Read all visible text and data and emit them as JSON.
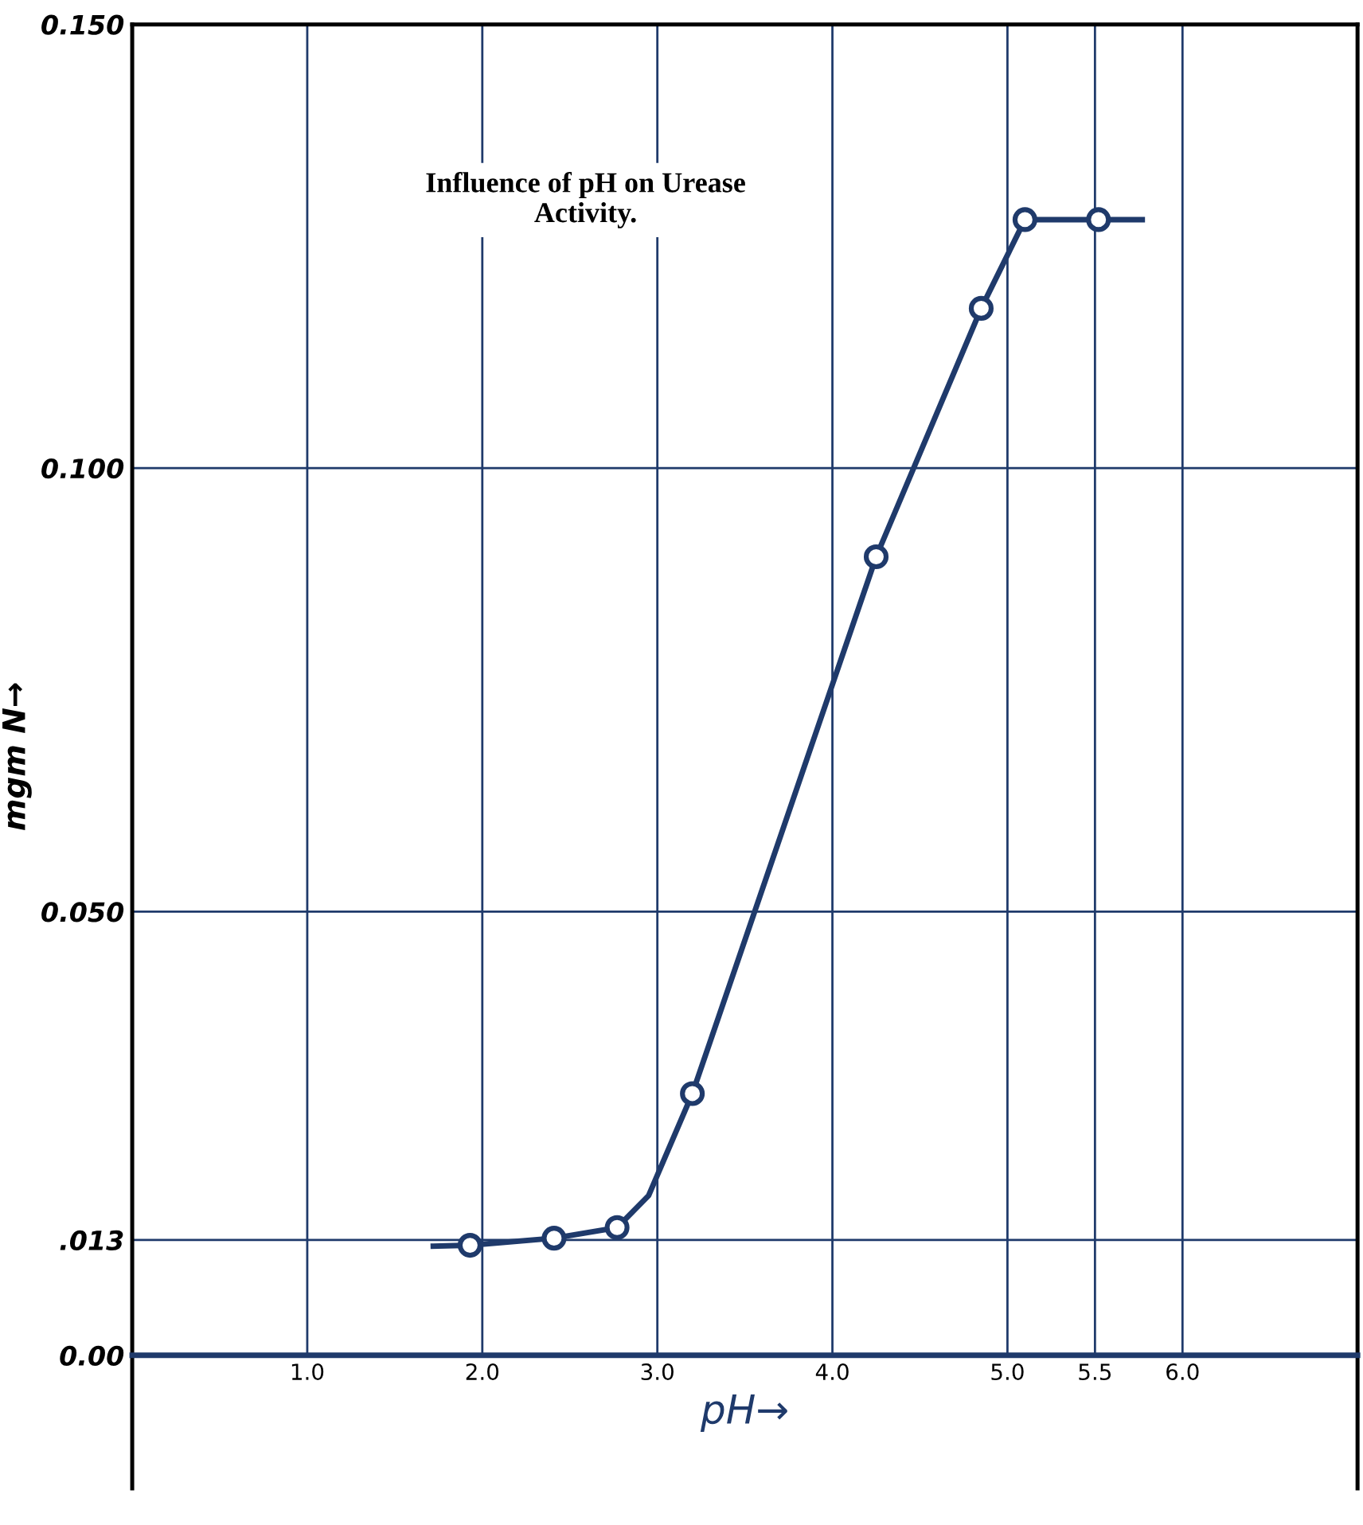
{
  "chart_data": {
    "type": "scatter",
    "title": "Influence of pH on Urease Activity.",
    "xlabel": "pH→",
    "ylabel": "mgm N→",
    "series": [
      {
        "type": "line",
        "color": "#1f3a6b",
        "x": [
          1.72,
          1.93,
          2.41,
          2.77,
          2.95,
          3.2,
          4.25,
          4.85,
          5.1,
          5.52,
          5.77
        ],
        "values": [
          0.0123,
          0.0124,
          0.0132,
          0.0144,
          0.018,
          0.0295,
          0.09,
          0.118,
          0.128,
          0.128,
          0.128
        ],
        "marker": "none"
      },
      {
        "color": "#1f3a6b",
        "x": [
          1.93,
          2.41,
          2.77,
          3.2,
          4.25,
          4.85,
          5.1,
          5.52
        ],
        "values": [
          0.0124,
          0.0132,
          0.0144,
          0.0295,
          0.09,
          0.118,
          0.128,
          0.128
        ],
        "marker": "circle"
      }
    ],
    "xlim": [
      0,
      7.0
    ],
    "ylim": [
      -0.015,
      0.15
    ],
    "xticks": [
      {
        "value": 1.0,
        "label": "1.0"
      },
      {
        "value": 2.0,
        "label": "2.0"
      },
      {
        "value": 3.0,
        "label": "3.0"
      },
      {
        "value": 4.0,
        "label": "4.0"
      },
      {
        "value": 5.0,
        "label": "5.0"
      },
      {
        "value": 5.5,
        "label": "5.5"
      },
      {
        "value": 6.0,
        "label": "6.0"
      }
    ],
    "yticks": [
      {
        "value": 0,
        "label": "0.00"
      },
      {
        "value": 0.013,
        "label": ".013"
      },
      {
        "value": 0.05,
        "label": "0.050"
      },
      {
        "value": 0.1,
        "label": "0.100"
      },
      {
        "value": 0.15,
        "label": "0.150"
      }
    ],
    "grid": true,
    "legend": false
  }
}
